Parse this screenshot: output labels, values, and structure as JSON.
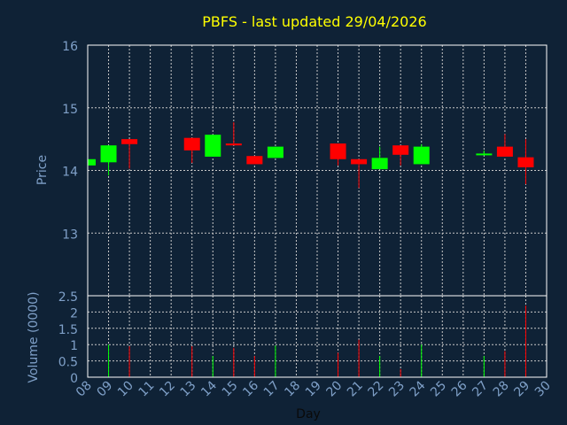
{
  "title": "PBFS - last updated 29/04/2026",
  "colors": {
    "background": "#0f2236",
    "title": "#ffff00",
    "axis_text": "#7fa0c8",
    "grid": "#c8c8c8",
    "frame": "#ffffff",
    "up": "#00ff00",
    "down": "#ff0000"
  },
  "chart_data": [
    {
      "type": "candlestick",
      "ylabel": "Price",
      "ylim": [
        12,
        16
      ],
      "yticks": [
        13,
        14,
        15,
        16
      ],
      "grid": true,
      "x_days": [
        "08",
        "09",
        "10",
        "11",
        "12",
        "13",
        "14",
        "15",
        "16",
        "17",
        "18",
        "19",
        "20",
        "21",
        "22",
        "23",
        "24",
        "25",
        "26",
        "27",
        "28",
        "29",
        "30"
      ],
      "candles": [
        {
          "day": 8,
          "open": 14.08,
          "close": 14.18,
          "high": 14.18,
          "low": 14.08
        },
        {
          "day": 9,
          "open": 14.13,
          "close": 14.4,
          "high": 14.4,
          "low": 13.92
        },
        {
          "day": 10,
          "open": 14.5,
          "close": 14.42,
          "high": 14.5,
          "low": 14.03
        },
        {
          "day": 13,
          "open": 14.52,
          "close": 14.32,
          "high": 14.52,
          "low": 14.12
        },
        {
          "day": 14,
          "open": 14.22,
          "close": 14.57,
          "high": 14.57,
          "low": 14.22
        },
        {
          "day": 15,
          "open": 14.43,
          "close": 14.4,
          "high": 14.77,
          "low": 14.4
        },
        {
          "day": 16,
          "open": 14.23,
          "close": 14.1,
          "high": 14.23,
          "low": 14.1
        },
        {
          "day": 17,
          "open": 14.2,
          "close": 14.38,
          "high": 14.38,
          "low": 14.2
        },
        {
          "day": 20,
          "open": 14.43,
          "close": 14.18,
          "high": 14.43,
          "low": 14.08
        },
        {
          "day": 21,
          "open": 14.18,
          "close": 14.1,
          "high": 14.18,
          "low": 13.72
        },
        {
          "day": 22,
          "open": 14.02,
          "close": 14.2,
          "high": 14.38,
          "low": 14.02
        },
        {
          "day": 23,
          "open": 14.4,
          "close": 14.25,
          "high": 14.4,
          "low": 14.08
        },
        {
          "day": 24,
          "open": 14.1,
          "close": 14.38,
          "high": 14.42,
          "low": 14.1
        },
        {
          "day": 27,
          "open": 14.25,
          "close": 14.27,
          "high": 14.32,
          "low": 14.25
        },
        {
          "day": 28,
          "open": 14.38,
          "close": 14.22,
          "high": 14.58,
          "low": 14.22
        },
        {
          "day": 29,
          "open": 14.21,
          "close": 14.05,
          "high": 14.5,
          "low": 13.78
        }
      ]
    },
    {
      "type": "bar",
      "xlabel": "Day",
      "ylabel": "Volume (0000)",
      "ylim": [
        0,
        2.5
      ],
      "yticks": [
        "0",
        "0.5",
        "1",
        "1.5",
        "2",
        "2.5"
      ],
      "grid": true,
      "bars": [
        {
          "day": 9,
          "value": 1.0,
          "dir": "up"
        },
        {
          "day": 10,
          "value": 0.95,
          "dir": "down"
        },
        {
          "day": 13,
          "value": 0.95,
          "dir": "down"
        },
        {
          "day": 14,
          "value": 0.65,
          "dir": "up"
        },
        {
          "day": 15,
          "value": 0.9,
          "dir": "down"
        },
        {
          "day": 16,
          "value": 0.65,
          "dir": "down"
        },
        {
          "day": 17,
          "value": 0.97,
          "dir": "up"
        },
        {
          "day": 20,
          "value": 0.75,
          "dir": "down"
        },
        {
          "day": 21,
          "value": 1.15,
          "dir": "down"
        },
        {
          "day": 22,
          "value": 0.65,
          "dir": "up"
        },
        {
          "day": 23,
          "value": 0.25,
          "dir": "down"
        },
        {
          "day": 24,
          "value": 1.0,
          "dir": "up"
        },
        {
          "day": 27,
          "value": 0.65,
          "dir": "up"
        },
        {
          "day": 28,
          "value": 0.8,
          "dir": "down"
        },
        {
          "day": 29,
          "value": 2.2,
          "dir": "down"
        }
      ]
    }
  ]
}
